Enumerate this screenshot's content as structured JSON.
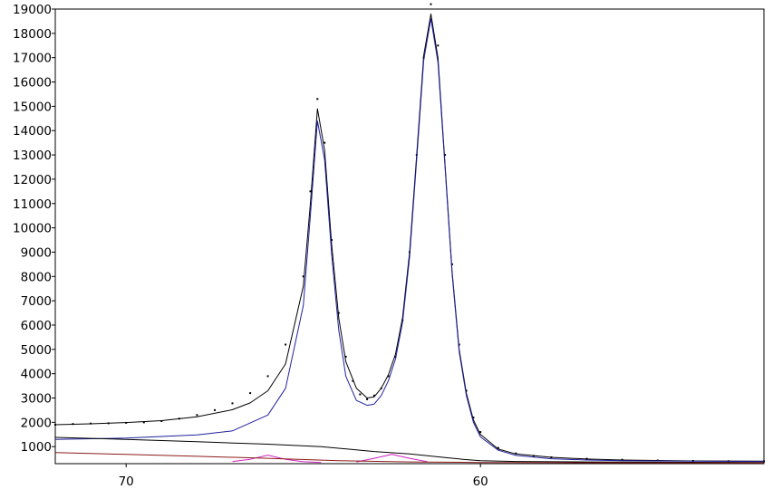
{
  "chart_data": {
    "type": "line",
    "title": "",
    "xlabel": "",
    "ylabel": "",
    "x_reversed": true,
    "xlim": [
      72,
      52
    ],
    "ylim": [
      300,
      19000
    ],
    "grid": false,
    "x_ticks": [
      70,
      60
    ],
    "y_ticks": [
      1000,
      2000,
      3000,
      4000,
      5000,
      6000,
      7000,
      8000,
      9000,
      10000,
      11000,
      12000,
      13000,
      14000,
      15000,
      16000,
      17000,
      18000,
      19000
    ],
    "colors": {
      "observed": "#000000",
      "fit": "#000000",
      "component_main": "#2020a0",
      "component_minor": "#d020c0",
      "baseline": "#000000",
      "baseline_lower": "#8b1a1a"
    },
    "series": [
      {
        "kind": "points",
        "role": "observed",
        "x": [
          72,
          71.5,
          71,
          70.5,
          70,
          69.5,
          69,
          68.5,
          68,
          67.5,
          67,
          66.5,
          66,
          65.5,
          65,
          64.8,
          64.6,
          64.4,
          64.2,
          64.0,
          63.8,
          63.6,
          63.4,
          63.2,
          63.0,
          62.8,
          62.6,
          62.4,
          62.2,
          62.0,
          61.8,
          61.6,
          61.4,
          61.2,
          61.0,
          60.8,
          60.6,
          60.4,
          60.2,
          60.0,
          59.5,
          59,
          58.5,
          58,
          57,
          56,
          55,
          54,
          53,
          52
        ],
        "y": [
          1900,
          1930,
          1950,
          1960,
          1980,
          2000,
          2050,
          2150,
          2300,
          2500,
          2780,
          3200,
          3900,
          5200,
          8000,
          11500,
          15300,
          13500,
          9500,
          6500,
          4700,
          3700,
          3150,
          2950,
          3100,
          3400,
          3900,
          4700,
          6200,
          9000,
          13000,
          17000,
          19200,
          17500,
          13000,
          8500,
          5200,
          3300,
          2200,
          1600,
          950,
          720,
          620,
          560,
          500,
          460,
          430,
          410,
          400,
          395
        ]
      },
      {
        "kind": "line",
        "role": "fit",
        "x": [
          72,
          71,
          70,
          69,
          68,
          67,
          66.5,
          66,
          65.5,
          65.0,
          64.8,
          64.6,
          64.4,
          64.2,
          64.0,
          63.8,
          63.5,
          63.2,
          63.0,
          62.8,
          62.6,
          62.4,
          62.2,
          62.0,
          61.8,
          61.6,
          61.4,
          61.2,
          61.0,
          60.8,
          60.6,
          60.4,
          60.2,
          60.0,
          59.5,
          59,
          58,
          57,
          56,
          54,
          52
        ],
        "y": [
          1900,
          1940,
          1990,
          2070,
          2230,
          2520,
          2800,
          3300,
          4400,
          7600,
          11000,
          14900,
          13200,
          9300,
          6300,
          4500,
          3400,
          3000,
          3050,
          3400,
          3950,
          4800,
          6300,
          9000,
          13000,
          17100,
          18800,
          17000,
          12600,
          8200,
          5000,
          3200,
          2100,
          1500,
          900,
          700,
          560,
          490,
          450,
          410,
          400
        ]
      },
      {
        "kind": "line",
        "role": "component_main",
        "x": [
          72,
          70,
          68,
          67,
          66,
          65.5,
          65.0,
          64.8,
          64.6,
          64.4,
          64.2,
          64.0,
          63.8,
          63.5,
          63.2,
          63.0,
          62.8,
          62.6,
          62.4,
          62.2,
          62.0,
          61.8,
          61.6,
          61.4,
          61.2,
          61.0,
          60.8,
          60.6,
          60.4,
          60.2,
          60.0,
          59.5,
          59,
          58,
          57,
          56,
          54,
          52
        ],
        "y": [
          1300,
          1350,
          1480,
          1650,
          2300,
          3400,
          6800,
          10500,
          14400,
          12800,
          8900,
          5800,
          3900,
          2900,
          2700,
          2750,
          3100,
          3700,
          4600,
          6100,
          8800,
          12800,
          16900,
          18600,
          16800,
          12500,
          8100,
          4900,
          3100,
          2000,
          1400,
          850,
          640,
          500,
          450,
          420,
          400,
          390
        ]
      },
      {
        "kind": "line",
        "role": "component_minor",
        "x": [
          67.0,
          66.5,
          66.0,
          65.5,
          65.0,
          64.5
        ],
        "y": [
          390,
          480,
          650,
          480,
          380,
          350
        ]
      },
      {
        "kind": "line",
        "role": "component_minor",
        "x": [
          63.5,
          63.0,
          62.5,
          62.0,
          61.5
        ],
        "y": [
          370,
          520,
          680,
          520,
          380
        ]
      },
      {
        "kind": "line",
        "role": "baseline",
        "x": [
          72,
          70,
          68,
          66,
          64.5,
          63,
          62,
          61,
          60.5,
          60,
          59,
          57,
          55,
          52
        ],
        "y": [
          1380,
          1300,
          1200,
          1100,
          1000,
          800,
          700,
          550,
          480,
          420,
          390,
          370,
          360,
          350
        ]
      },
      {
        "kind": "line",
        "role": "baseline_lower",
        "x": [
          72,
          70,
          68,
          66,
          64,
          62,
          60,
          58,
          55,
          52
        ],
        "y": [
          760,
          680,
          600,
          520,
          420,
          370,
          350,
          340,
          335,
          330
        ]
      }
    ]
  }
}
